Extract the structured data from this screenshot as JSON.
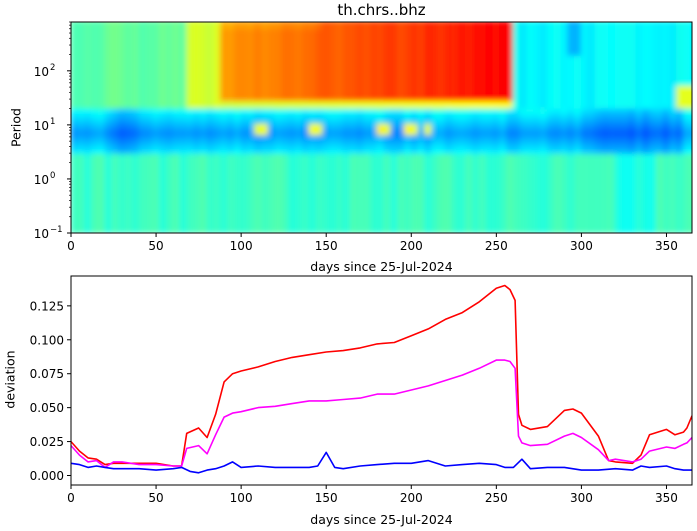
{
  "chart_data": [
    {
      "type": "heatmap",
      "title": "th.chrs..bhz",
      "xlabel": "days since 25-Jul-2024",
      "ylabel": "Period",
      "xlim": [
        0,
        365
      ],
      "ylim": [
        0.1,
        800
      ],
      "yscale": "log",
      "colormap": "jet",
      "x_ticks": [
        "0",
        "50",
        "100",
        "150",
        "200",
        "250",
        "300",
        "350"
      ],
      "y_ticks": [
        "10^-1",
        "10^0",
        "10^1",
        "10^2"
      ],
      "description_bands": [
        {
          "period_range": [
            0.1,
            3
          ],
          "x_range": [
            0,
            365
          ],
          "level": "cyan-green"
        },
        {
          "period_range": [
            3,
            20
          ],
          "x_range": [
            0,
            365
          ],
          "level": "blue-cyan (low)"
        },
        {
          "period_range": [
            20,
            800
          ],
          "x_range": [
            0,
            90
          ],
          "level": "green-yellow"
        },
        {
          "period_range": [
            25,
            800
          ],
          "x_range": [
            90,
            262
          ],
          "level": "orange-red (high)"
        },
        {
          "period_range": [
            20,
            800
          ],
          "x_range": [
            262,
            365
          ],
          "level": "cyan"
        }
      ]
    },
    {
      "type": "line",
      "xlabel": "days since 25-Jul-2024",
      "ylabel": "deviation",
      "xlim": [
        0,
        365
      ],
      "ylim": [
        -0.007,
        0.147
      ],
      "x_ticks": [
        "0",
        "50",
        "100",
        "150",
        "200",
        "250",
        "300",
        "350"
      ],
      "y_ticks": [
        "0.000",
        "0.025",
        "0.050",
        "0.075",
        "0.100",
        "0.125"
      ],
      "series": [
        {
          "color": "#ff0000",
          "x": [
            0,
            5,
            10,
            15,
            20,
            25,
            30,
            40,
            50,
            60,
            65,
            68,
            75,
            80,
            85,
            90,
            95,
            100,
            110,
            120,
            130,
            140,
            150,
            160,
            170,
            180,
            190,
            200,
            210,
            220,
            230,
            240,
            250,
            255,
            258,
            261,
            263,
            265,
            270,
            280,
            290,
            295,
            300,
            310,
            316,
            320,
            330,
            335,
            340,
            350,
            355,
            360,
            362,
            365
          ],
          "y": [
            0.025,
            0.018,
            0.013,
            0.012,
            0.008,
            0.009,
            0.009,
            0.009,
            0.009,
            0.007,
            0.007,
            0.031,
            0.035,
            0.028,
            0.045,
            0.069,
            0.075,
            0.077,
            0.08,
            0.084,
            0.087,
            0.089,
            0.091,
            0.092,
            0.094,
            0.097,
            0.098,
            0.103,
            0.108,
            0.115,
            0.12,
            0.128,
            0.138,
            0.14,
            0.137,
            0.129,
            0.045,
            0.037,
            0.034,
            0.036,
            0.048,
            0.049,
            0.046,
            0.029,
            0.011,
            0.01,
            0.009,
            0.015,
            0.03,
            0.034,
            0.03,
            0.032,
            0.035,
            0.044
          ]
        },
        {
          "color": "#ff00ff",
          "x": [
            0,
            5,
            10,
            15,
            20,
            25,
            30,
            40,
            50,
            60,
            65,
            68,
            75,
            80,
            85,
            90,
            95,
            100,
            110,
            120,
            130,
            140,
            150,
            160,
            170,
            180,
            190,
            200,
            210,
            220,
            230,
            240,
            250,
            255,
            258,
            261,
            263,
            265,
            270,
            280,
            290,
            295,
            300,
            310,
            316,
            320,
            330,
            335,
            340,
            350,
            355,
            360,
            362,
            365
          ],
          "y": [
            0.022,
            0.015,
            0.01,
            0.011,
            0.006,
            0.01,
            0.01,
            0.008,
            0.008,
            0.007,
            0.007,
            0.02,
            0.022,
            0.016,
            0.03,
            0.043,
            0.046,
            0.047,
            0.05,
            0.051,
            0.053,
            0.055,
            0.055,
            0.056,
            0.057,
            0.06,
            0.06,
            0.063,
            0.066,
            0.07,
            0.074,
            0.079,
            0.085,
            0.085,
            0.084,
            0.079,
            0.029,
            0.024,
            0.022,
            0.023,
            0.029,
            0.031,
            0.028,
            0.019,
            0.011,
            0.012,
            0.01,
            0.012,
            0.018,
            0.021,
            0.02,
            0.023,
            0.024,
            0.028
          ]
        },
        {
          "color": "#0000ff",
          "x": [
            0,
            5,
            10,
            15,
            20,
            25,
            30,
            40,
            50,
            60,
            65,
            70,
            75,
            80,
            85,
            90,
            95,
            100,
            110,
            120,
            130,
            140,
            145,
            150,
            155,
            160,
            170,
            180,
            190,
            200,
            210,
            220,
            230,
            240,
            250,
            255,
            260,
            265,
            270,
            280,
            290,
            300,
            310,
            320,
            330,
            335,
            340,
            350,
            355,
            360,
            365
          ],
          "y": [
            0.009,
            0.008,
            0.006,
            0.007,
            0.006,
            0.005,
            0.005,
            0.005,
            0.004,
            0.005,
            0.006,
            0.003,
            0.002,
            0.004,
            0.005,
            0.007,
            0.01,
            0.006,
            0.007,
            0.006,
            0.006,
            0.006,
            0.007,
            0.017,
            0.006,
            0.005,
            0.007,
            0.008,
            0.009,
            0.009,
            0.011,
            0.007,
            0.008,
            0.009,
            0.008,
            0.006,
            0.006,
            0.012,
            0.005,
            0.006,
            0.006,
            0.004,
            0.004,
            0.005,
            0.004,
            0.007,
            0.006,
            0.007,
            0.005,
            0.004,
            0.004
          ]
        }
      ]
    }
  ]
}
